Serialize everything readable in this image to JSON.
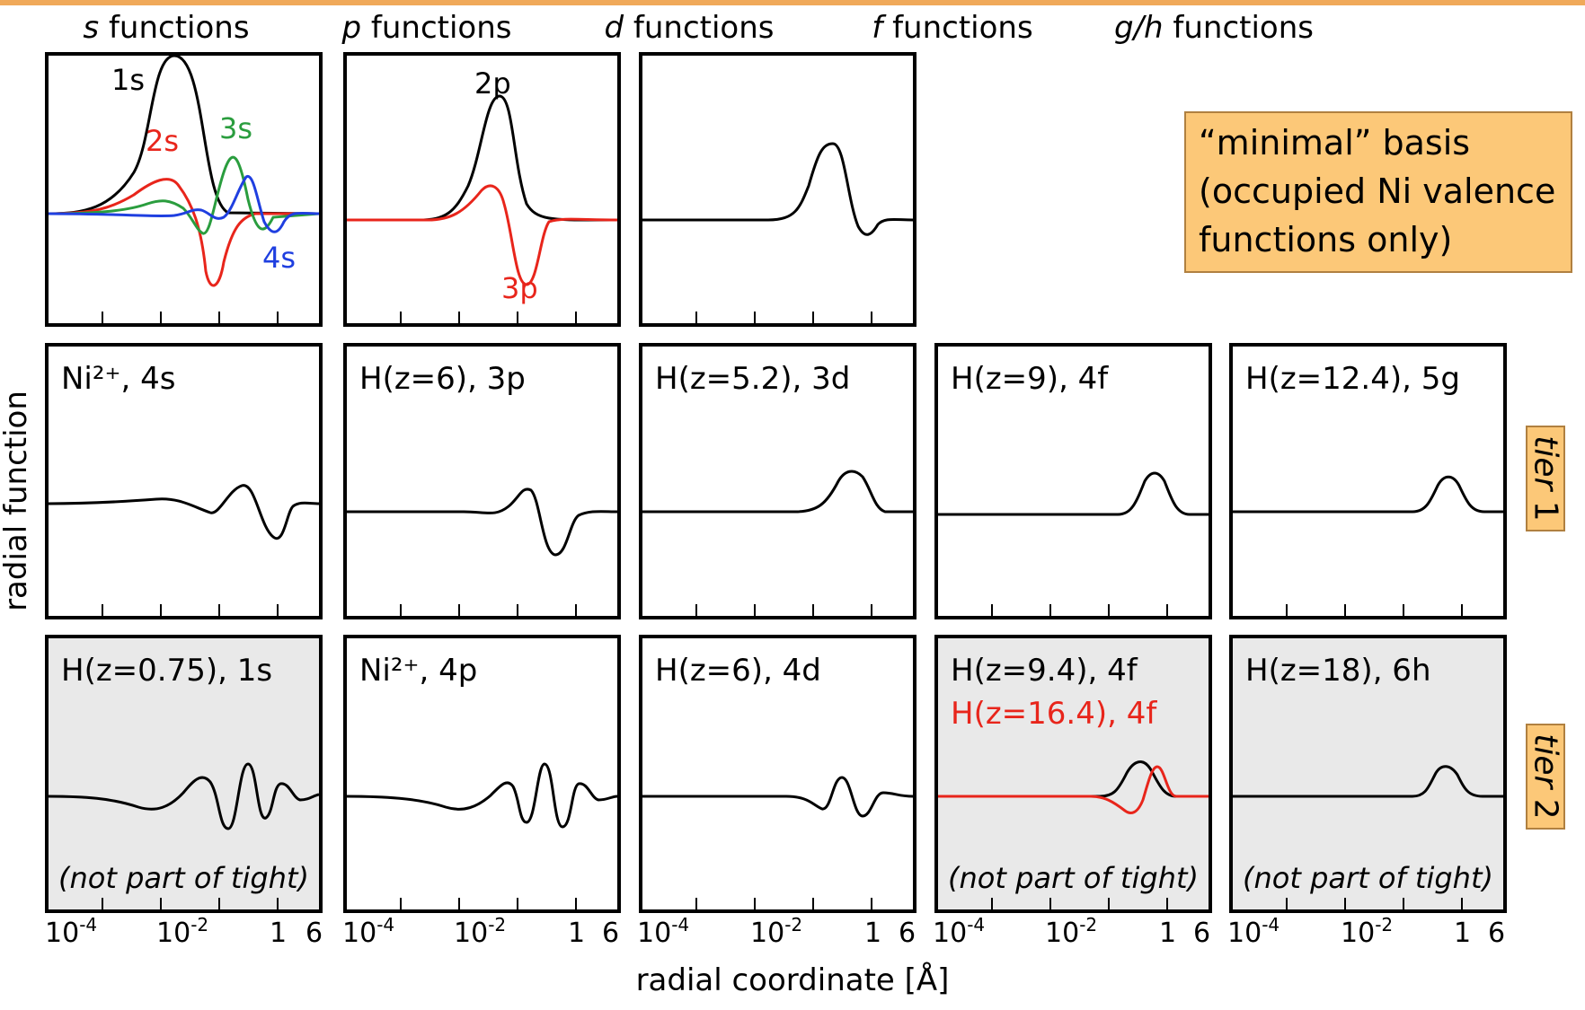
{
  "column_headers": [
    {
      "italic": "s",
      "rest": " functions"
    },
    {
      "italic": "p",
      "rest": " functions"
    },
    {
      "italic": "d",
      "rest": " functions"
    },
    {
      "italic": "f",
      "rest": " functions"
    },
    {
      "italic": "g/h",
      "rest": " functions"
    }
  ],
  "minimal_box": {
    "line1": "“minimal” basis",
    "line2": "(occupied Ni valence",
    "line3": "functions only)"
  },
  "tiers": [
    {
      "italic": "tier",
      "rest": " 1"
    },
    {
      "italic": "tier",
      "rest": " 2"
    }
  ],
  "curve_labels": {
    "s1": "1s",
    "s2": "2s",
    "s3": "3s",
    "s4": "4s",
    "p2": "2p",
    "p3": "3p"
  },
  "tier1_labels": [
    "Ni²⁺, 4s",
    "H(z=6), 3p",
    "H(z=5.2), 3d",
    "H(z=9), 4f",
    "H(z=12.4), 5g"
  ],
  "tier2_labels": [
    "H(z=0.75), 1s",
    "Ni²⁺, 4p",
    "H(z=6), 4d",
    "H(z=9.4), 4f",
    "H(z=18), 6h"
  ],
  "tier2_label_extra": "H(z=16.4), 4f",
  "note": "(not part of tight)",
  "x_ticks": {
    "t1": "10",
    "e1": "-4",
    "t2": "10",
    "e2": "-2",
    "t3": "1",
    "t4": "6"
  },
  "x_axis_title": "radial coordinate [Å]",
  "y_axis_title": "radial function",
  "colors": {
    "black": "#000000",
    "red": "#e8251b",
    "green": "#2a9d3e",
    "blue": "#1f3fe0",
    "box": "#fcc878",
    "gray_panel": "#e9e9e9"
  }
}
